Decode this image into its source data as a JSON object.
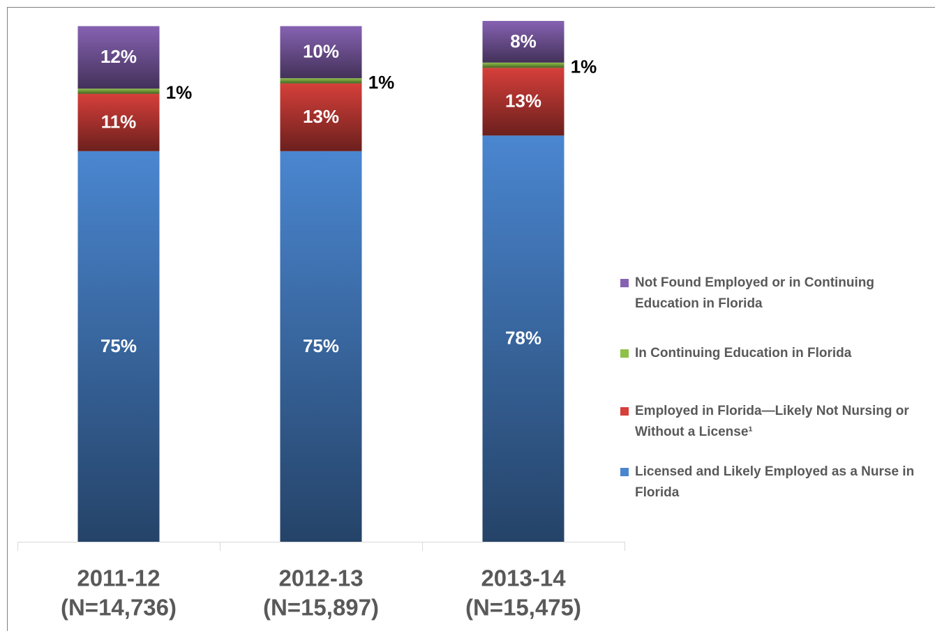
{
  "chart_data": {
    "type": "stacked_bar",
    "categories": [
      "2011-12",
      "2012-13",
      "2013-14"
    ],
    "category_counts": [
      "(N=14,736)",
      "(N=15,897)",
      "(N=15,475)"
    ],
    "series": [
      {
        "name": "Licensed and Likely Employed as a Nurse in Florida",
        "color": "#4a86d0",
        "values": [
          75,
          75,
          78
        ],
        "value_labels": [
          "75%",
          "75%",
          "78%"
        ]
      },
      {
        "name": "Employed in Florida—Likely Not Nursing or Without a License¹",
        "color": "#d63f3a",
        "values": [
          11,
          13,
          13
        ],
        "value_labels": [
          "11%",
          "13%",
          "13%"
        ]
      },
      {
        "name": "In Continuing Education in Florida",
        "color": "#8fc148",
        "values": [
          1,
          1,
          1
        ],
        "value_labels": [
          "1%",
          "1%",
          "1%"
        ]
      },
      {
        "name": "Not Found Employed or in Continuing Education in Florida",
        "color": "#8662b2",
        "values": [
          12,
          10,
          8
        ],
        "value_labels": [
          "12%",
          "10%",
          "8%"
        ]
      }
    ],
    "ylim": [
      0,
      100
    ],
    "legend": "right"
  }
}
